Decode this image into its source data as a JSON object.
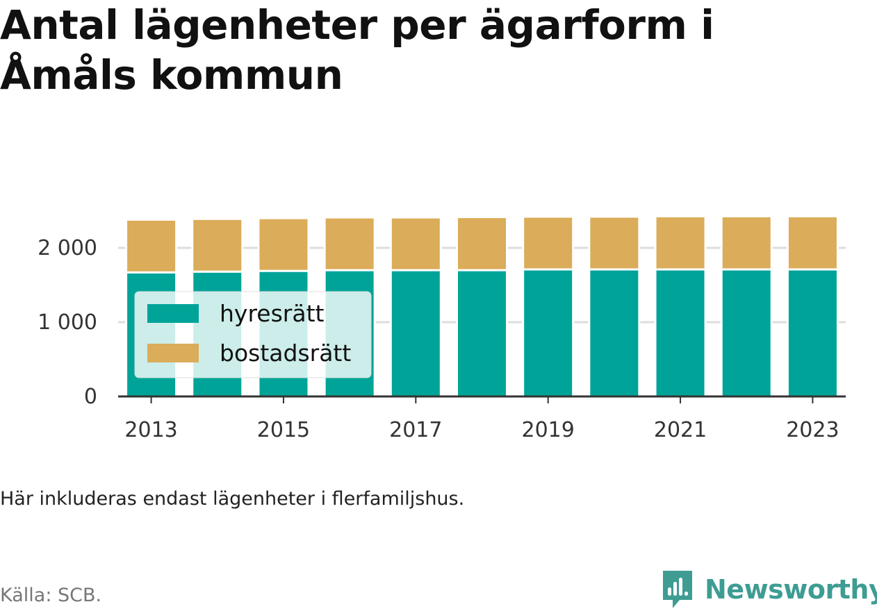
{
  "title": "Antal lägenheter per ägarform i Åmåls kommun",
  "note": "Här inkluderas endast lägenheter i flerfamiljshus.",
  "source": "Källa: SCB.",
  "brand": "Newsworthy",
  "colors": {
    "hyresratt": "#00a398",
    "bostadsratt": "#dbac59",
    "grid": "#dddddd",
    "axis": "#333333",
    "brand": "#3e9c93"
  },
  "chart_data": {
    "type": "bar",
    "stacked": true,
    "categories": [
      "2013",
      "2014",
      "2015",
      "2016",
      "2017",
      "2018",
      "2019",
      "2020",
      "2021",
      "2022",
      "2023"
    ],
    "x_tick_labels": [
      "2013",
      "2015",
      "2017",
      "2019",
      "2021",
      "2023"
    ],
    "series": [
      {
        "name": "hyresrätt",
        "color": "#00a398",
        "values": [
          1670,
          1680,
          1690,
          1700,
          1700,
          1700,
          1710,
          1710,
          1710,
          1710,
          1710
        ]
      },
      {
        "name": "bostadsrätt",
        "color": "#dbac59",
        "values": [
          710,
          710,
          710,
          710,
          710,
          715,
          710,
          710,
          715,
          715,
          715
        ]
      }
    ],
    "y_ticks": [
      0,
      1000,
      2000
    ],
    "y_tick_labels": [
      "0",
      "1 000",
      "2 000"
    ],
    "ylim": [
      0,
      2600
    ],
    "grid": true,
    "legend": "inside-left"
  }
}
